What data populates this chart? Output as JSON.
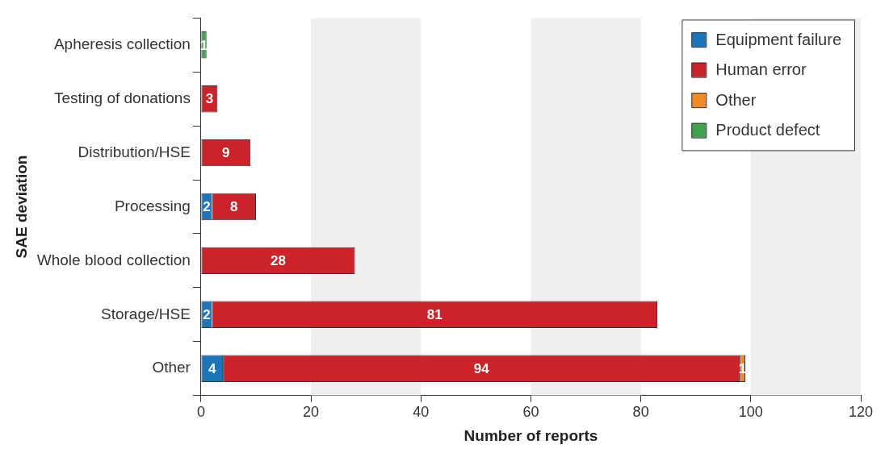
{
  "chart_data": {
    "type": "bar",
    "orientation": "horizontal",
    "stacked": true,
    "xlabel": "Number of reports",
    "ylabel": "SAE deviation",
    "categories": [
      "Apheresis collection",
      "Testing of donations",
      "Distribution/HSE",
      "Processing",
      "Whole blood collection",
      "Storage/HSE",
      "Other"
    ],
    "series": [
      {
        "name": "Equipment failure",
        "color": "#1a75bb",
        "values": [
          null,
          null,
          null,
          2,
          null,
          2,
          4
        ]
      },
      {
        "name": "Human error",
        "color": "#cc2229",
        "values": [
          null,
          3,
          9,
          8,
          28,
          81,
          94
        ]
      },
      {
        "name": "Other",
        "color": "#f08a24",
        "values": [
          null,
          null,
          null,
          null,
          null,
          null,
          1
        ]
      },
      {
        "name": "Product defect",
        "color": "#3fa34d",
        "values": [
          1,
          null,
          null,
          null,
          null,
          null,
          null
        ]
      }
    ],
    "xlim": [
      0,
      120
    ],
    "xticks": [
      0,
      20,
      40,
      60,
      80,
      100,
      120
    ],
    "bands": [
      {
        "axis": "x",
        "from": 20,
        "to": 40,
        "color": "#efefef"
      },
      {
        "axis": "x",
        "from": 60,
        "to": 80,
        "color": "#efefef"
      },
      {
        "axis": "x",
        "from": 100,
        "to": 120,
        "color": "#efefef"
      }
    ],
    "data_labels": true,
    "legend": "top right",
    "grid": false
  }
}
